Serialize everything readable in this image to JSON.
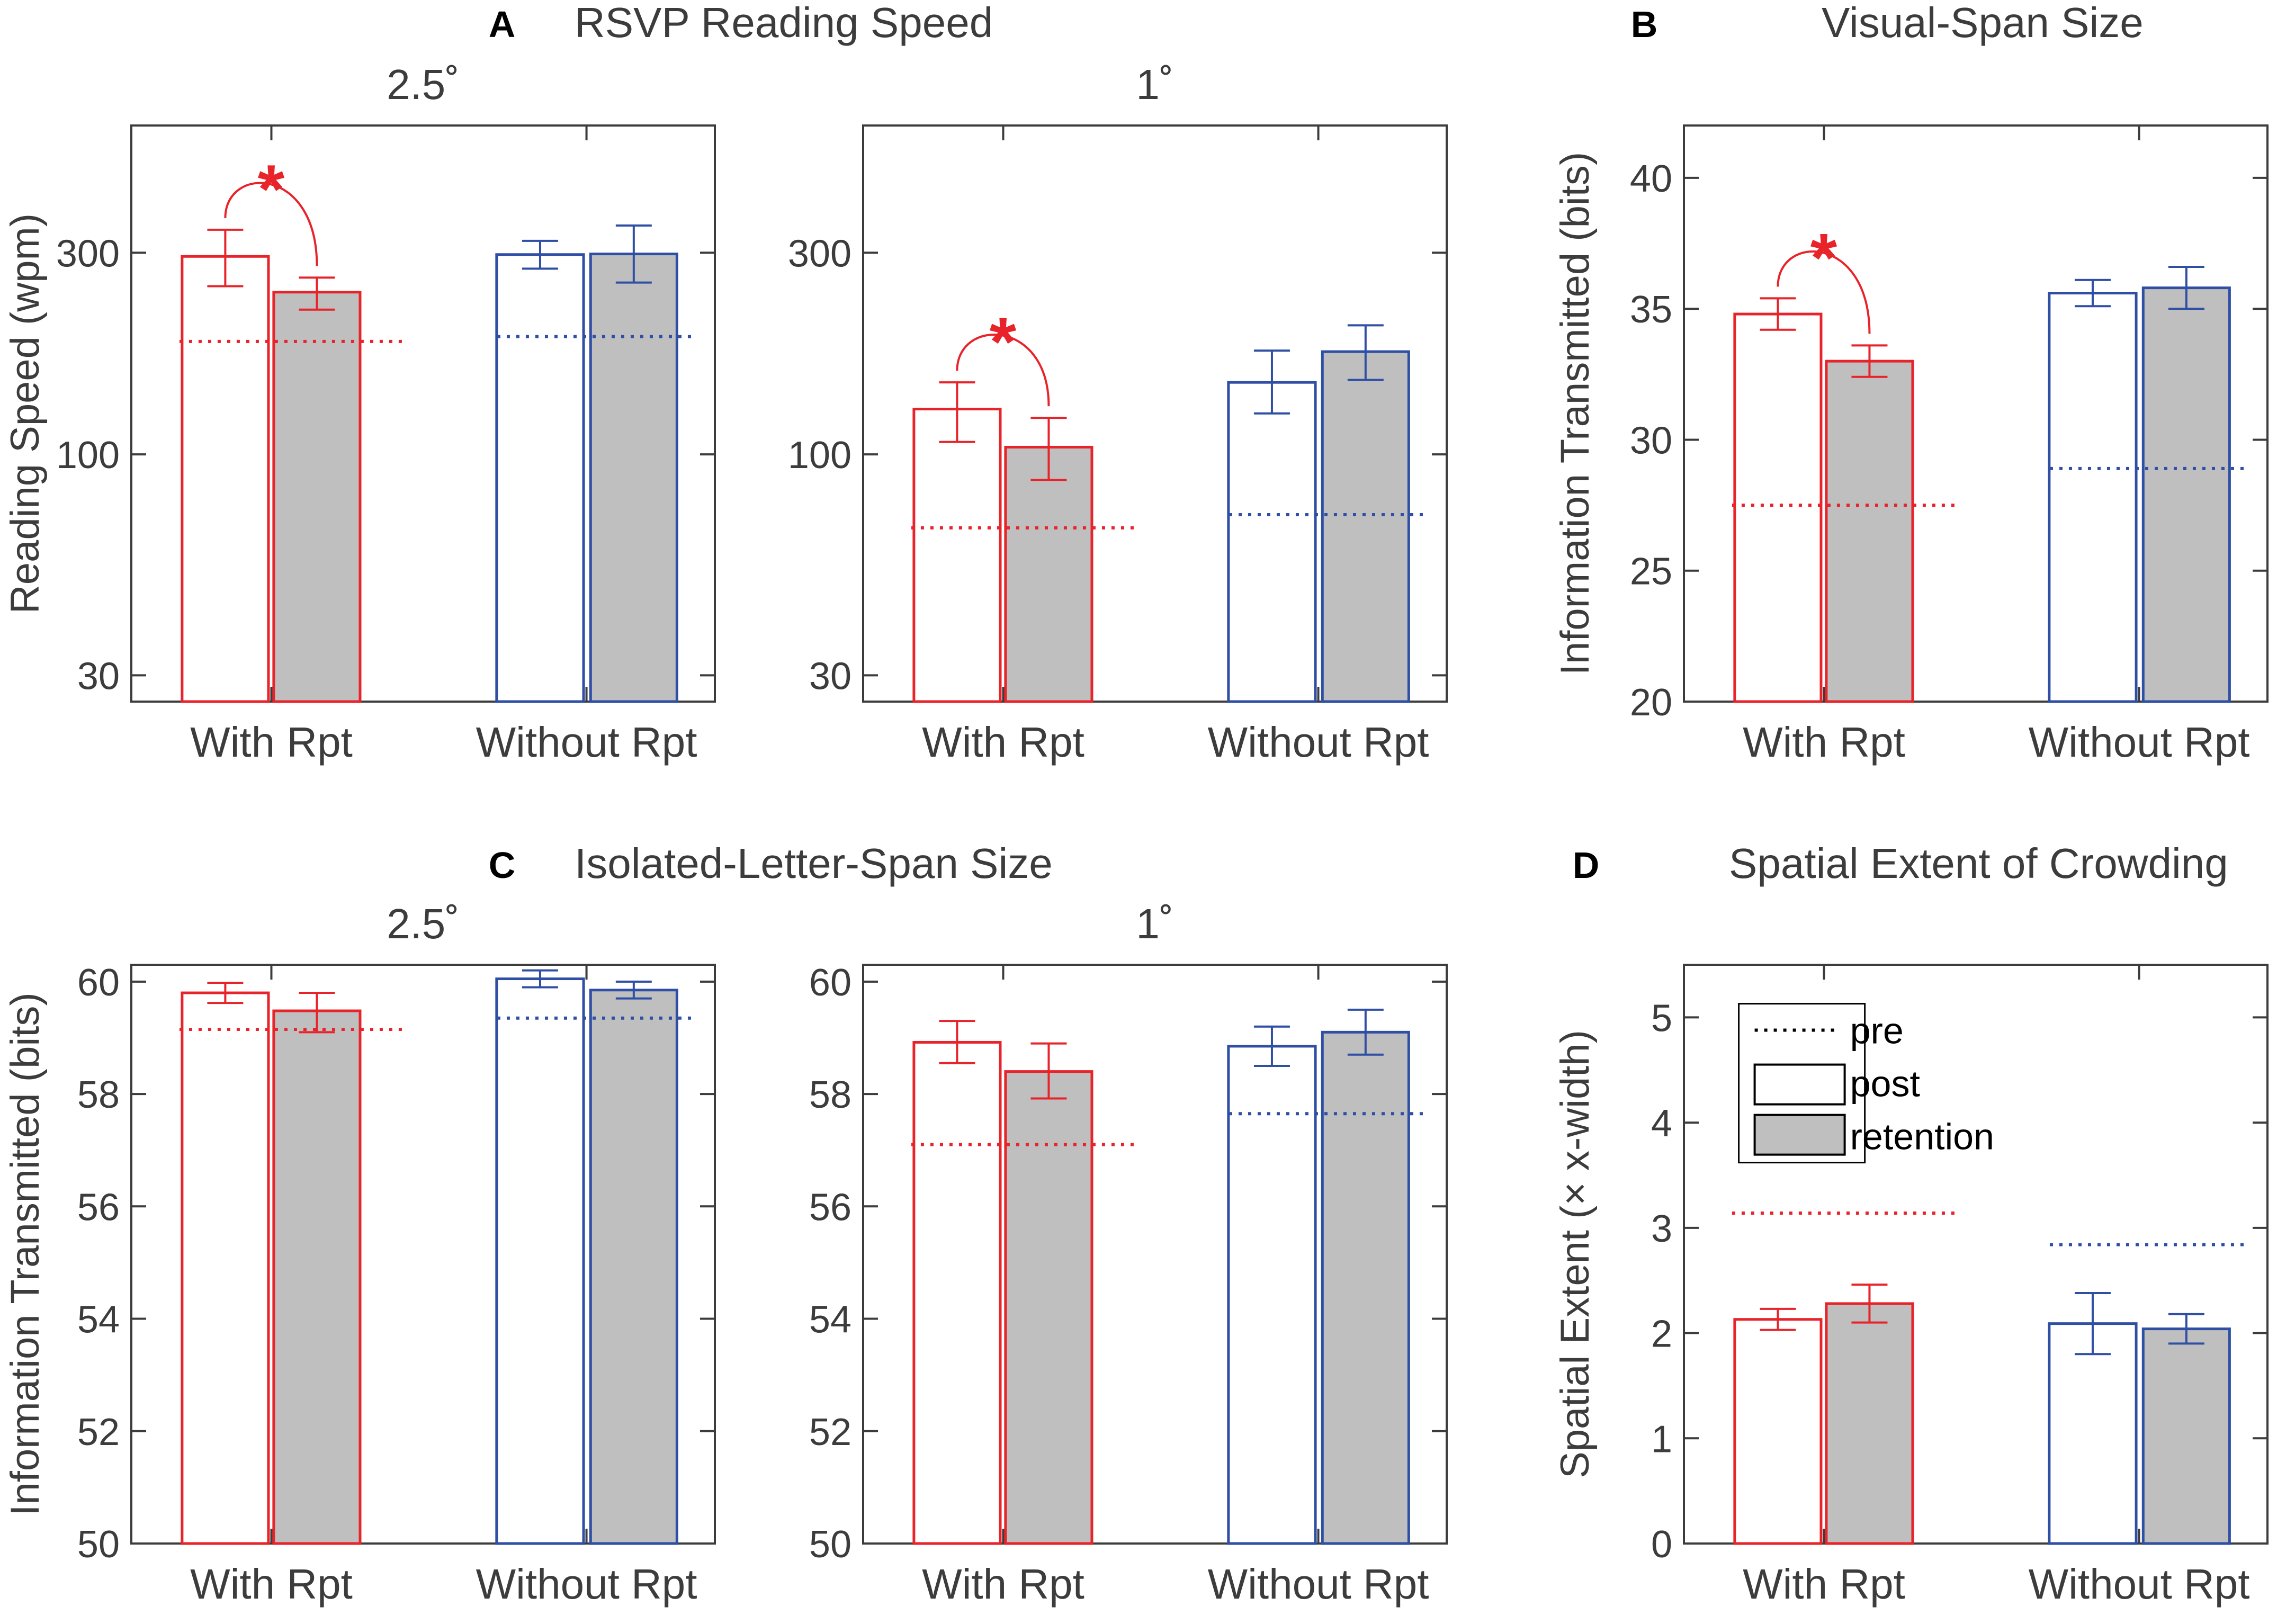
{
  "colors": {
    "with": "#e8232a",
    "without": "#2f4fa5",
    "retention_fill": "#bfbfc0",
    "axis": "#3c3c3c"
  },
  "legend": {
    "pre": "pre",
    "post": "post",
    "retention": "retention"
  },
  "chart_data": [
    {
      "id": "A1",
      "type": "bar",
      "letter": "A",
      "title": "RSVP Reading Speed",
      "subtitle": "2.5˚",
      "yscale": "log",
      "ylim": [
        26,
        600
      ],
      "yticks": [
        30,
        100,
        300
      ],
      "ytick_labels": [
        "30",
        "100",
        "300"
      ],
      "ylabel": "Reading Speed (wpm)",
      "categories": [
        "With Rpt",
        "Without Rpt"
      ],
      "pre": [
        185,
        190
      ],
      "series": [
        {
          "name": "post",
          "values": [
            294,
            297
          ],
          "err_lo": [
            250,
            275
          ],
          "err_hi": [
            340,
            320
          ]
        },
        {
          "name": "retention",
          "values": [
            242,
            298
          ],
          "err_lo": [
            220,
            255
          ],
          "err_hi": [
            262,
            348
          ]
        }
      ],
      "significance": [
        0
      ]
    },
    {
      "id": "A2",
      "type": "bar",
      "title": "",
      "subtitle": "1˚",
      "yscale": "log",
      "ylim": [
        26,
        600
      ],
      "yticks": [
        30,
        100,
        300
      ],
      "ytick_labels": [
        "30",
        "100",
        "300"
      ],
      "ylabel": "",
      "categories": [
        "With Rpt",
        "Without Rpt"
      ],
      "pre": [
        67,
        72
      ],
      "series": [
        {
          "name": "post",
          "values": [
            128,
            148
          ],
          "err_lo": [
            107,
            125
          ],
          "err_hi": [
            148,
            176
          ]
        },
        {
          "name": "retention",
          "values": [
            104,
            175
          ],
          "err_lo": [
            87,
            150
          ],
          "err_hi": [
            122,
            202
          ]
        }
      ],
      "significance": [
        0
      ]
    },
    {
      "id": "B",
      "type": "bar",
      "letter": "B",
      "title": "Visual-Span Size",
      "subtitle": "",
      "yscale": "linear",
      "ylim": [
        20,
        42
      ],
      "yticks": [
        20,
        25,
        30,
        35,
        40
      ],
      "ytick_labels": [
        "20",
        "25",
        "30",
        "35",
        "40"
      ],
      "ylabel": "Information Transmitted (bits)",
      "categories": [
        "With Rpt",
        "Without Rpt"
      ],
      "pre": [
        27.5,
        28.9
      ],
      "series": [
        {
          "name": "post",
          "values": [
            34.8,
            35.6
          ],
          "err_lo": [
            34.2,
            35.1
          ],
          "err_hi": [
            35.4,
            36.1
          ]
        },
        {
          "name": "retention",
          "values": [
            33.0,
            35.8
          ],
          "err_lo": [
            32.4,
            35.0
          ],
          "err_hi": [
            33.6,
            36.6
          ]
        }
      ],
      "significance": [
        0
      ]
    },
    {
      "id": "C1",
      "type": "bar",
      "letter": "C",
      "title": "Isolated-Letter-Span Size",
      "subtitle": "2.5˚",
      "yscale": "linear",
      "ylim": [
        50,
        60.3
      ],
      "yticks": [
        50,
        52,
        54,
        56,
        58,
        60
      ],
      "ytick_labels": [
        "50",
        "52",
        "54",
        "56",
        "58",
        "60"
      ],
      "ylabel": "Information Transmitted (bits)",
      "categories": [
        "With Rpt",
        "Without Rpt"
      ],
      "pre": [
        59.15,
        59.35
      ],
      "series": [
        {
          "name": "post",
          "values": [
            59.8,
            60.05
          ],
          "err_lo": [
            59.62,
            59.9
          ],
          "err_hi": [
            59.98,
            60.2
          ]
        },
        {
          "name": "retention",
          "values": [
            59.48,
            59.85
          ],
          "err_lo": [
            59.1,
            59.7
          ],
          "err_hi": [
            59.8,
            60.0
          ]
        }
      ],
      "significance": []
    },
    {
      "id": "C2",
      "type": "bar",
      "title": "",
      "subtitle": "1˚",
      "yscale": "linear",
      "ylim": [
        50,
        60.3
      ],
      "yticks": [
        50,
        52,
        54,
        56,
        58,
        60
      ],
      "ytick_labels": [
        "50",
        "52",
        "54",
        "56",
        "58",
        "60"
      ],
      "ylabel": "",
      "categories": [
        "With Rpt",
        "Without Rpt"
      ],
      "pre": [
        57.1,
        57.65
      ],
      "series": [
        {
          "name": "post",
          "values": [
            58.92,
            58.85
          ],
          "err_lo": [
            58.55,
            58.5
          ],
          "err_hi": [
            59.3,
            59.2
          ]
        },
        {
          "name": "retention",
          "values": [
            58.4,
            59.1
          ],
          "err_lo": [
            57.92,
            58.7
          ],
          "err_hi": [
            58.9,
            59.5
          ]
        }
      ],
      "significance": []
    },
    {
      "id": "D",
      "type": "bar",
      "letter": "D",
      "title": "Spatial Extent of Crowding",
      "subtitle": "",
      "yscale": "linear",
      "ylim": [
        0,
        5.5
      ],
      "yticks": [
        0,
        1,
        2,
        3,
        4,
        5
      ],
      "ytick_labels": [
        "0",
        "1",
        "2",
        "3",
        "4",
        "5"
      ],
      "ylabel": "Spatial Extent (× x-width)",
      "categories": [
        "With Rpt",
        "Without Rpt"
      ],
      "pre": [
        3.14,
        2.84
      ],
      "series": [
        {
          "name": "post",
          "values": [
            2.13,
            2.09
          ],
          "err_lo": [
            2.03,
            1.8
          ],
          "err_hi": [
            2.23,
            2.38
          ]
        },
        {
          "name": "retention",
          "values": [
            2.28,
            2.04
          ],
          "err_lo": [
            2.1,
            1.9
          ],
          "err_hi": [
            2.46,
            2.18
          ]
        }
      ],
      "significance": [],
      "legend": true
    }
  ]
}
